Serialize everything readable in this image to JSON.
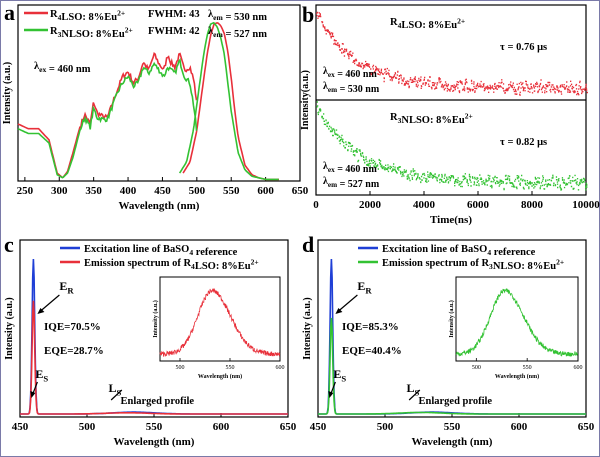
{
  "colors": {
    "red": "#e8303a",
    "green": "#33c233",
    "blue": "#1f3fd6",
    "black": "#000000",
    "frame": "#7a7aa8"
  },
  "panels": {
    "a": {
      "letter": "a"
    },
    "b": {
      "letter": "b"
    },
    "c": {
      "letter": "c"
    },
    "d": {
      "letter": "d"
    }
  },
  "chart_data": [
    {
      "panel": "a",
      "type": "line",
      "xlabel": "Wavelength (nm)",
      "ylabel": "Intensity (a.u.)",
      "xlim": [
        240,
        650
      ],
      "xticks": [
        250,
        300,
        350,
        400,
        450,
        500,
        550,
        600,
        650
      ],
      "ylim": [
        0,
        1
      ],
      "legend": "top-left",
      "annotations": {
        "lex_pre": "λ",
        "lex_sub": "ex",
        "lex_val": " = 460 nm"
      },
      "legend_rows": [
        {
          "label_pre": "R",
          "label_sub": "4",
          "label_mid": "LSO: 8%Eu",
          "label_sup": "2+",
          "fwhm": "FWHM: 43",
          "lem_pre": "λ",
          "lem_sub": "em",
          "lem_val": " = 530 nm"
        },
        {
          "label_pre": "R",
          "label_sub": "3",
          "label_mid": "NLSO: 8%Eu",
          "label_sup": "2+",
          "fwhm": "FWHM: 42",
          "lem_pre": "λ",
          "lem_sub": "em",
          "lem_val": " = 527 nm"
        }
      ],
      "series": [
        {
          "name": "R4LSO: 8%Eu2+",
          "color": "#e8303a",
          "excitation": {
            "x": [
              240,
              255,
              270,
              285,
              297,
              305,
              312,
              320,
              330,
              337,
              345,
              350,
              355,
              362,
              370,
              378,
              385,
              392,
              400,
              408,
              415,
              422,
              430,
              438,
              445,
              452,
              458,
              462,
              468,
              475,
              482,
              490,
              496,
              500
            ],
            "y": [
              0.36,
              0.33,
              0.33,
              0.26,
              0.05,
              0.02,
              0.06,
              0.18,
              0.34,
              0.42,
              0.36,
              0.5,
              0.43,
              0.41,
              0.4,
              0.5,
              0.58,
              0.66,
              0.69,
              0.62,
              0.65,
              0.75,
              0.7,
              0.8,
              0.74,
              0.7,
              0.8,
              0.75,
              0.72,
              0.8,
              0.7,
              0.72,
              0.63,
              0.48
            ]
          },
          "emission": {
            "x": [
              480,
              490,
              500,
              508,
              515,
              520,
              525,
              530,
              535,
              540,
              545,
              550,
              555,
              560,
              570,
              580,
              590,
              600,
              620
            ],
            "y": [
              0.05,
              0.12,
              0.32,
              0.58,
              0.8,
              0.92,
              0.99,
              1.0,
              0.98,
              0.93,
              0.82,
              0.65,
              0.45,
              0.28,
              0.1,
              0.04,
              0.02,
              0.01,
              0.01
            ]
          }
        },
        {
          "name": "R3NLSO: 8%Eu2+",
          "color": "#33c233",
          "excitation": {
            "x": [
              240,
              255,
              270,
              285,
              297,
              305,
              312,
              320,
              330,
              337,
              345,
              350,
              355,
              362,
              370,
              378,
              385,
              392,
              400,
              408,
              415,
              422,
              430,
              438,
              445,
              452,
              458,
              462,
              468,
              475,
              482,
              490,
              496,
              500
            ],
            "y": [
              0.33,
              0.3,
              0.3,
              0.24,
              0.04,
              0.02,
              0.05,
              0.15,
              0.32,
              0.4,
              0.34,
              0.46,
              0.4,
              0.39,
              0.39,
              0.48,
              0.56,
              0.62,
              0.66,
              0.6,
              0.62,
              0.72,
              0.68,
              0.74,
              0.7,
              0.66,
              0.72,
              0.7,
              0.68,
              0.76,
              0.66,
              0.62,
              0.46,
              0.3
            ]
          },
          "emission": {
            "x": [
              475,
              485,
              495,
              503,
              510,
              515,
              520,
              525,
              530,
              535,
              540,
              545,
              550,
              560,
              570,
              580,
              590,
              600,
              620
            ],
            "y": [
              0.05,
              0.12,
              0.32,
              0.58,
              0.8,
              0.92,
              0.99,
              1.0,
              0.97,
              0.9,
              0.8,
              0.62,
              0.44,
              0.18,
              0.07,
              0.03,
              0.02,
              0.01,
              0.01
            ]
          }
        }
      ]
    },
    {
      "panel": "b",
      "type": "scatter",
      "xlabel": "Time(ns)",
      "ylabel": "Intensity(a.u.)",
      "xlim": [
        0,
        10000
      ],
      "xticks": [
        0,
        2000,
        4000,
        6000,
        8000,
        10000
      ],
      "series": [
        {
          "label_pre": "R",
          "label_sub": "4",
          "label_mid": "LSO: 8%Eu",
          "label_sup": "2+",
          "tau": "τ = 0.76 μs",
          "lex_pre": "λ",
          "lex_sub": "ex",
          "lex_val": " = 460 nm",
          "lem_pre": "λ",
          "lem_sub": "em",
          "lem_val": " = 530 nm",
          "color": "#e8303a",
          "tau_us": 0.76
        },
        {
          "label_pre": "R",
          "label_sub": "3",
          "label_mid": "NLSO: 8%Eu",
          "label_sup": "2+",
          "tau": "τ = 0.82 μs",
          "lex_pre": "λ",
          "lex_sub": "ex",
          "lex_val": " = 460 nm",
          "lem_pre": "λ",
          "lem_sub": "em",
          "lem_val": " = 527 nm",
          "color": "#33c233",
          "tau_us": 0.82
        }
      ]
    },
    {
      "panel": "c",
      "type": "line",
      "xlabel": "Wavelength (nm)",
      "ylabel": "Intensity (a.u.)",
      "xlim": [
        450,
        650
      ],
      "xticks": [
        450,
        500,
        550,
        600,
        650
      ],
      "legend_rows": [
        {
          "color": "#1f3fd6",
          "pre": "Excitation line of BaSO",
          "sub": "4",
          "post": " reference",
          "sup": ""
        },
        {
          "color": "#e8303a",
          "pre": "Emission spectrum of R",
          "sub": "4",
          "post": "LSO: 8%Eu",
          "sup": "2+"
        }
      ],
      "labels": {
        "er_main": "E",
        "er_sub": "R",
        "es_main": "E",
        "es_sub": "S",
        "ls_main": "L",
        "ls_sub": "S",
        "iqe": "IQE=70.5%",
        "eqe": "EQE=28.7%",
        "enlarged": "Enlarged profile"
      },
      "reference": {
        "color": "#1f3fd6",
        "peak_x": 460,
        "peak_y": 1.0,
        "bump_x": 535,
        "bump_y": 0.012
      },
      "sample": {
        "color": "#e8303a",
        "peak_x": 460,
        "peak_y": 0.73,
        "bump_x": 530,
        "bump_y": 0.008
      },
      "inset": {
        "xlabel": "Wavelength (nm)",
        "ylabel": "Intensity (a.u.)",
        "xlim": [
          480,
          600
        ],
        "xticks": [
          500,
          550,
          600
        ],
        "peak_x": 532,
        "color": "#e8303a"
      }
    },
    {
      "panel": "d",
      "type": "line",
      "xlabel": "Wavelength (nm)",
      "ylabel": "Intensity (a.u.)",
      "xlim": [
        450,
        650
      ],
      "xticks": [
        450,
        500,
        550,
        600,
        650
      ],
      "legend_rows": [
        {
          "color": "#1f3fd6",
          "pre": "Excitation line of BaSO",
          "sub": "4",
          "post": " reference",
          "sup": ""
        },
        {
          "color": "#33c233",
          "pre": "Emission spectrum of R",
          "sub": "3",
          "post": "NLSO: 8%Eu",
          "sup": "2+"
        }
      ],
      "labels": {
        "er_main": "E",
        "er_sub": "R",
        "es_main": "E",
        "es_sub": "S",
        "ls_main": "L",
        "ls_sub": "S",
        "iqe": "IQE=85.3%",
        "eqe": "EQE=40.4%",
        "enlarged": "Enlarged profile"
      },
      "reference": {
        "color": "#1f3fd6",
        "peak_x": 460,
        "peak_y": 1.0,
        "bump_x": 535,
        "bump_y": 0.012
      },
      "sample": {
        "color": "#33c233",
        "peak_x": 460,
        "peak_y": 0.62,
        "bump_x": 527,
        "bump_y": 0.01
      },
      "inset": {
        "xlabel": "Wavelength (nm)",
        "ylabel": "Intensity (a.u.)",
        "xlim": [
          480,
          600
        ],
        "xticks": [
          500,
          550,
          600
        ],
        "peak_x": 528,
        "color": "#33c233"
      }
    }
  ]
}
